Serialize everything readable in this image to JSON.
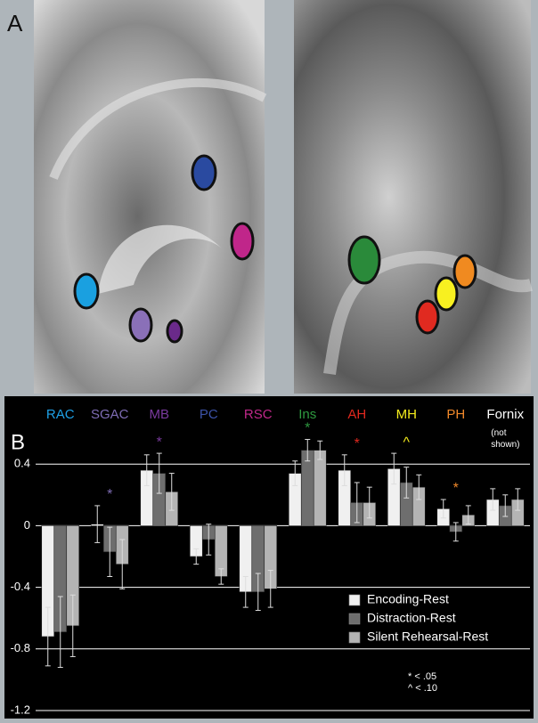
{
  "panel_labels": [
    "A",
    "B"
  ],
  "chart_data": {
    "type": "bar",
    "categories": [
      "RAC",
      "SGAC",
      "MB",
      "PC",
      "RSC",
      "Ins",
      "AH",
      "MH",
      "PH",
      "Fornix"
    ],
    "category_colors": [
      "#1ea0e6",
      "#7e6cb4",
      "#7a3a9e",
      "#3c52a8",
      "#c0288a",
      "#2e9a40",
      "#e0281e",
      "#f4ec1c",
      "#f0882a",
      "#ffffff"
    ],
    "category_notes": [
      null,
      null,
      null,
      null,
      null,
      null,
      null,
      null,
      null,
      "(not shown)"
    ],
    "markers": [
      null,
      "*",
      "*",
      null,
      null,
      "*",
      "*",
      "^",
      "*",
      null
    ],
    "series": [
      {
        "name": "Encoding-Rest",
        "color": "#f0f0f0",
        "values": [
          -0.72,
          0.01,
          0.36,
          -0.2,
          -0.43,
          0.34,
          0.36,
          0.37,
          0.11,
          0.17
        ],
        "errors": [
          0.19,
          0.12,
          0.1,
          0.05,
          0.1,
          0.08,
          0.1,
          0.1,
          0.06,
          0.07
        ]
      },
      {
        "name": "Distraction-Rest",
        "color": "#6e6e6e",
        "values": [
          -0.69,
          -0.17,
          0.34,
          -0.09,
          -0.43,
          0.49,
          0.15,
          0.28,
          -0.04,
          0.13
        ],
        "errors": [
          0.23,
          0.16,
          0.13,
          0.1,
          0.12,
          0.07,
          0.13,
          0.1,
          0.06,
          0.07
        ]
      },
      {
        "name": "Silent Rehearsal-Rest",
        "color": "#b4b4b4",
        "values": [
          -0.65,
          -0.25,
          0.22,
          -0.33,
          -0.41,
          0.49,
          0.15,
          0.25,
          0.07,
          0.17
        ],
        "errors": [
          0.2,
          0.16,
          0.12,
          0.05,
          0.12,
          0.06,
          0.1,
          0.08,
          0.06,
          0.07
        ]
      }
    ],
    "ylim": [
      -1.2,
      0.8
    ],
    "yticks": [
      -1.2,
      -0.8,
      -0.4,
      0,
      0.4
    ],
    "grid": true,
    "legend": "bottom-right",
    "footnotes": [
      "* < .05",
      "^ < .10"
    ]
  }
}
